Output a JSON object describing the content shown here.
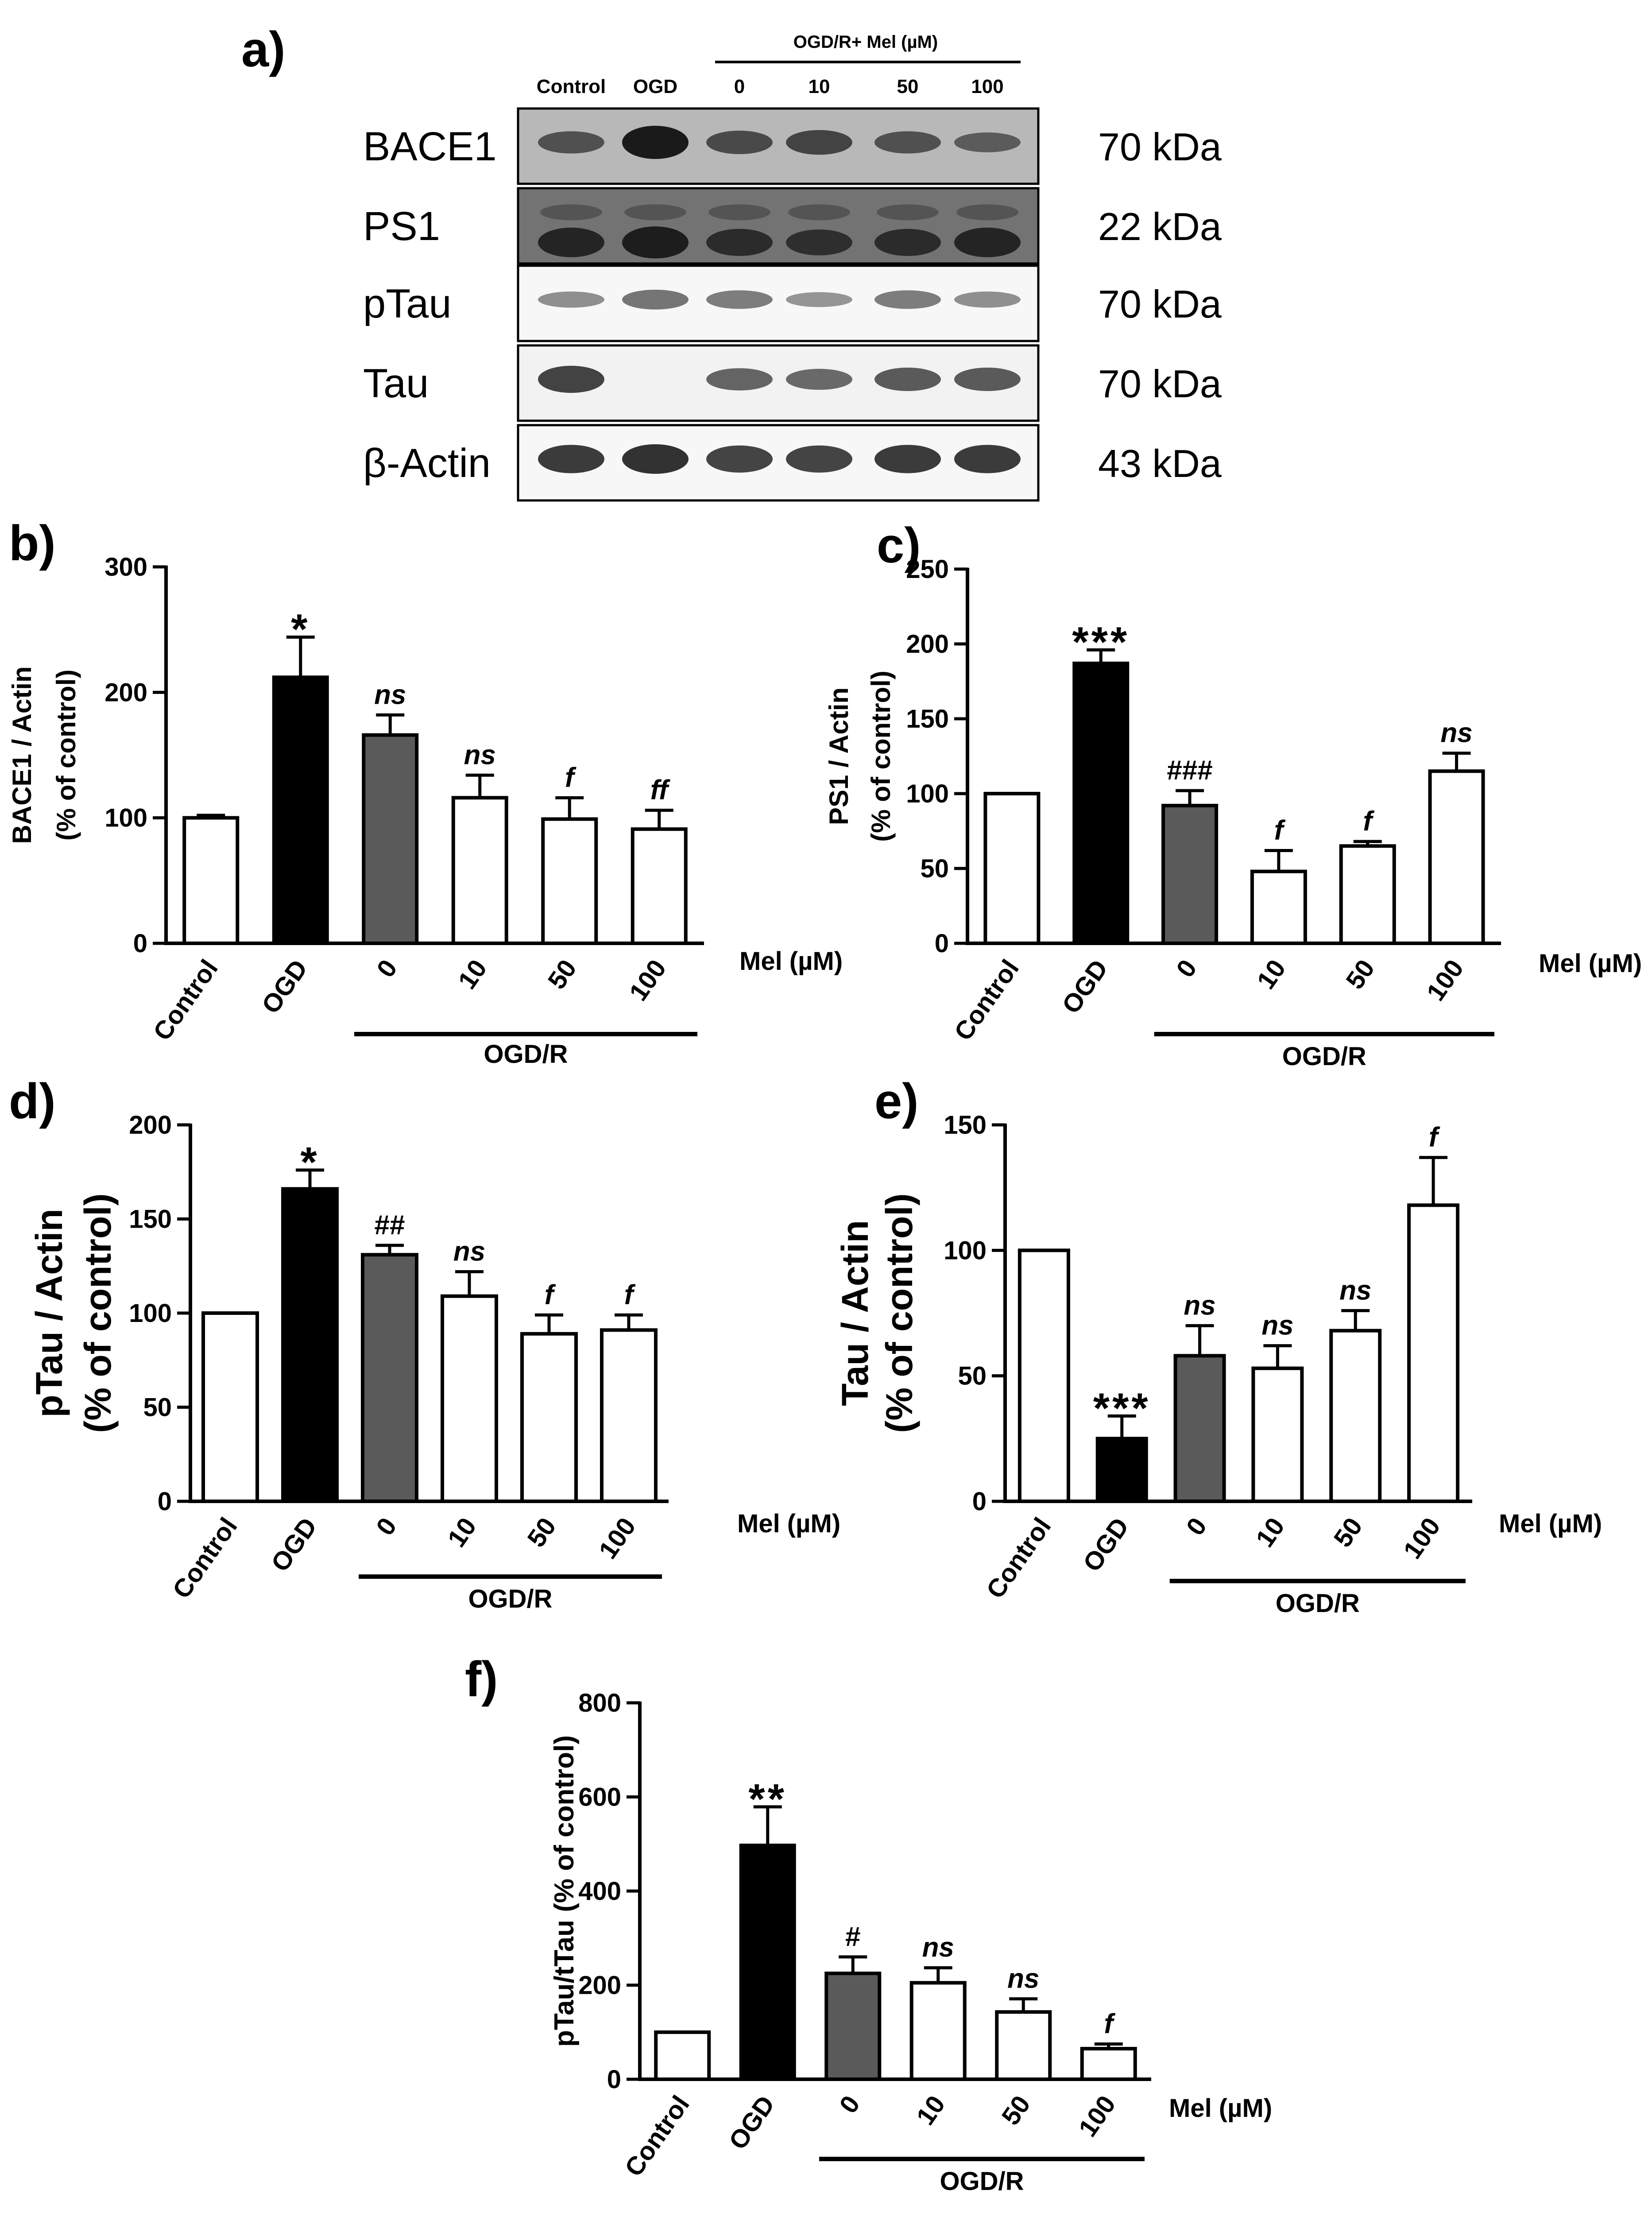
{
  "colors": {
    "axis": "#000000",
    "bar_white": "#ffffff",
    "bar_black": "#000000",
    "bar_gray": "#5a5a5a",
    "blot_bg": "#e6e6e6",
    "blot_band": "#1a1a1a"
  },
  "western_blot": {
    "panel_label": "a)",
    "treatment_header": "OGD/R+ Mel (µM)",
    "lanes": [
      "Control",
      "OGD",
      "0",
      "10",
      "50",
      "100"
    ],
    "rows": [
      {
        "protein": "BACE1",
        "size": "70 kDa",
        "intensity": [
          0.55,
          1.0,
          0.6,
          0.65,
          0.55,
          0.45
        ],
        "bg": 0.72
      },
      {
        "protein": "PS1",
        "size": "22 kDa",
        "intensity": [
          0.85,
          0.95,
          0.75,
          0.7,
          0.75,
          0.85
        ],
        "bg": 0.45
      },
      {
        "protein": "pTau",
        "size": "70  kDa",
        "intensity": [
          0.3,
          0.45,
          0.4,
          0.25,
          0.4,
          0.3
        ],
        "bg": 0.97
      },
      {
        "protein": "Tau",
        "size": "70  kDa",
        "intensity": [
          0.75,
          0.0,
          0.55,
          0.5,
          0.6,
          0.6
        ],
        "bg": 0.95
      },
      {
        "protein": "β-Actin",
        "size": "43  kDa",
        "intensity": [
          0.8,
          0.85,
          0.75,
          0.75,
          0.8,
          0.8
        ],
        "bg": 0.97
      }
    ]
  },
  "chart_data": [
    {
      "panel_label": "b)",
      "type": "bar",
      "ylabel": [
        "BACE1 / Actin",
        "(% of control)"
      ],
      "categories": [
        "Control",
        "OGD",
        "0",
        "10",
        "50",
        "100"
      ],
      "values": [
        100,
        212,
        166,
        116,
        99,
        91
      ],
      "errors": [
        2,
        32,
        16,
        18,
        17,
        15
      ],
      "annotations": [
        "",
        "*",
        "ns",
        "ns",
        "f",
        "ff"
      ],
      "ylim": [
        0,
        300
      ],
      "yticks": [
        0,
        100,
        200,
        300
      ],
      "x_extra_label": "Mel (µM)",
      "group_label": "OGD/R"
    },
    {
      "panel_label": "c)",
      "type": "bar",
      "ylabel": [
        "PS1 / Actin",
        "(% of control)"
      ],
      "categories": [
        "Control",
        "OGD",
        "0",
        "10",
        "50",
        "100"
      ],
      "values": [
        100,
        187,
        92,
        48,
        65,
        115
      ],
      "errors": [
        0,
        9,
        10,
        14,
        3,
        12
      ],
      "annotations": [
        "",
        "***",
        "###",
        "f",
        "f",
        "ns"
      ],
      "ylim": [
        0,
        250
      ],
      "yticks": [
        0,
        50,
        100,
        150,
        200,
        250
      ],
      "x_extra_label": "Mel (µM)",
      "group_label": "OGD/R"
    },
    {
      "panel_label": "d)",
      "type": "bar",
      "ylabel": [
        "pTau / Actin",
        "(% of control)"
      ],
      "categories": [
        "Control",
        "OGD",
        "0",
        "10",
        "50",
        "100"
      ],
      "values": [
        100,
        166,
        131,
        109,
        89,
        91
      ],
      "errors": [
        0,
        10,
        5,
        13,
        10,
        8
      ],
      "annotations": [
        "",
        "*",
        "##",
        "ns",
        "f",
        "f"
      ],
      "ylim": [
        0,
        200
      ],
      "yticks": [
        0,
        50,
        100,
        150,
        200
      ],
      "x_extra_label": "Mel (µM)",
      "group_label": "OGD/R"
    },
    {
      "panel_label": "e)",
      "type": "bar",
      "ylabel": [
        "Tau / Actin",
        "(% of control)"
      ],
      "categories": [
        "Control",
        "OGD",
        "0",
        "10",
        "50",
        "100"
      ],
      "values": [
        100,
        25,
        58,
        53,
        68,
        118
      ],
      "errors": [
        0,
        9,
        12,
        9,
        8,
        19
      ],
      "annotations": [
        "",
        "***",
        "ns",
        "ns",
        "ns",
        "f"
      ],
      "ylim": [
        0,
        150
      ],
      "yticks": [
        0,
        50,
        100,
        150
      ],
      "x_extra_label": "Mel (µM)",
      "group_label": "OGD/R"
    },
    {
      "panel_label": "f)",
      "type": "bar",
      "ylabel": [
        "pTau/tTau (% of control)"
      ],
      "categories": [
        "Control",
        "OGD",
        "0",
        "10",
        "50",
        "100"
      ],
      "values": [
        100,
        497,
        225,
        205,
        143,
        65
      ],
      "errors": [
        0,
        82,
        35,
        32,
        28,
        10
      ],
      "annotations": [
        "",
        "**",
        "#",
        "ns",
        "ns",
        "f"
      ],
      "ylim": [
        0,
        800
      ],
      "yticks": [
        0,
        200,
        400,
        600,
        800
      ],
      "x_extra_label": "Mel (µM)",
      "group_label": "OGD/R"
    }
  ]
}
